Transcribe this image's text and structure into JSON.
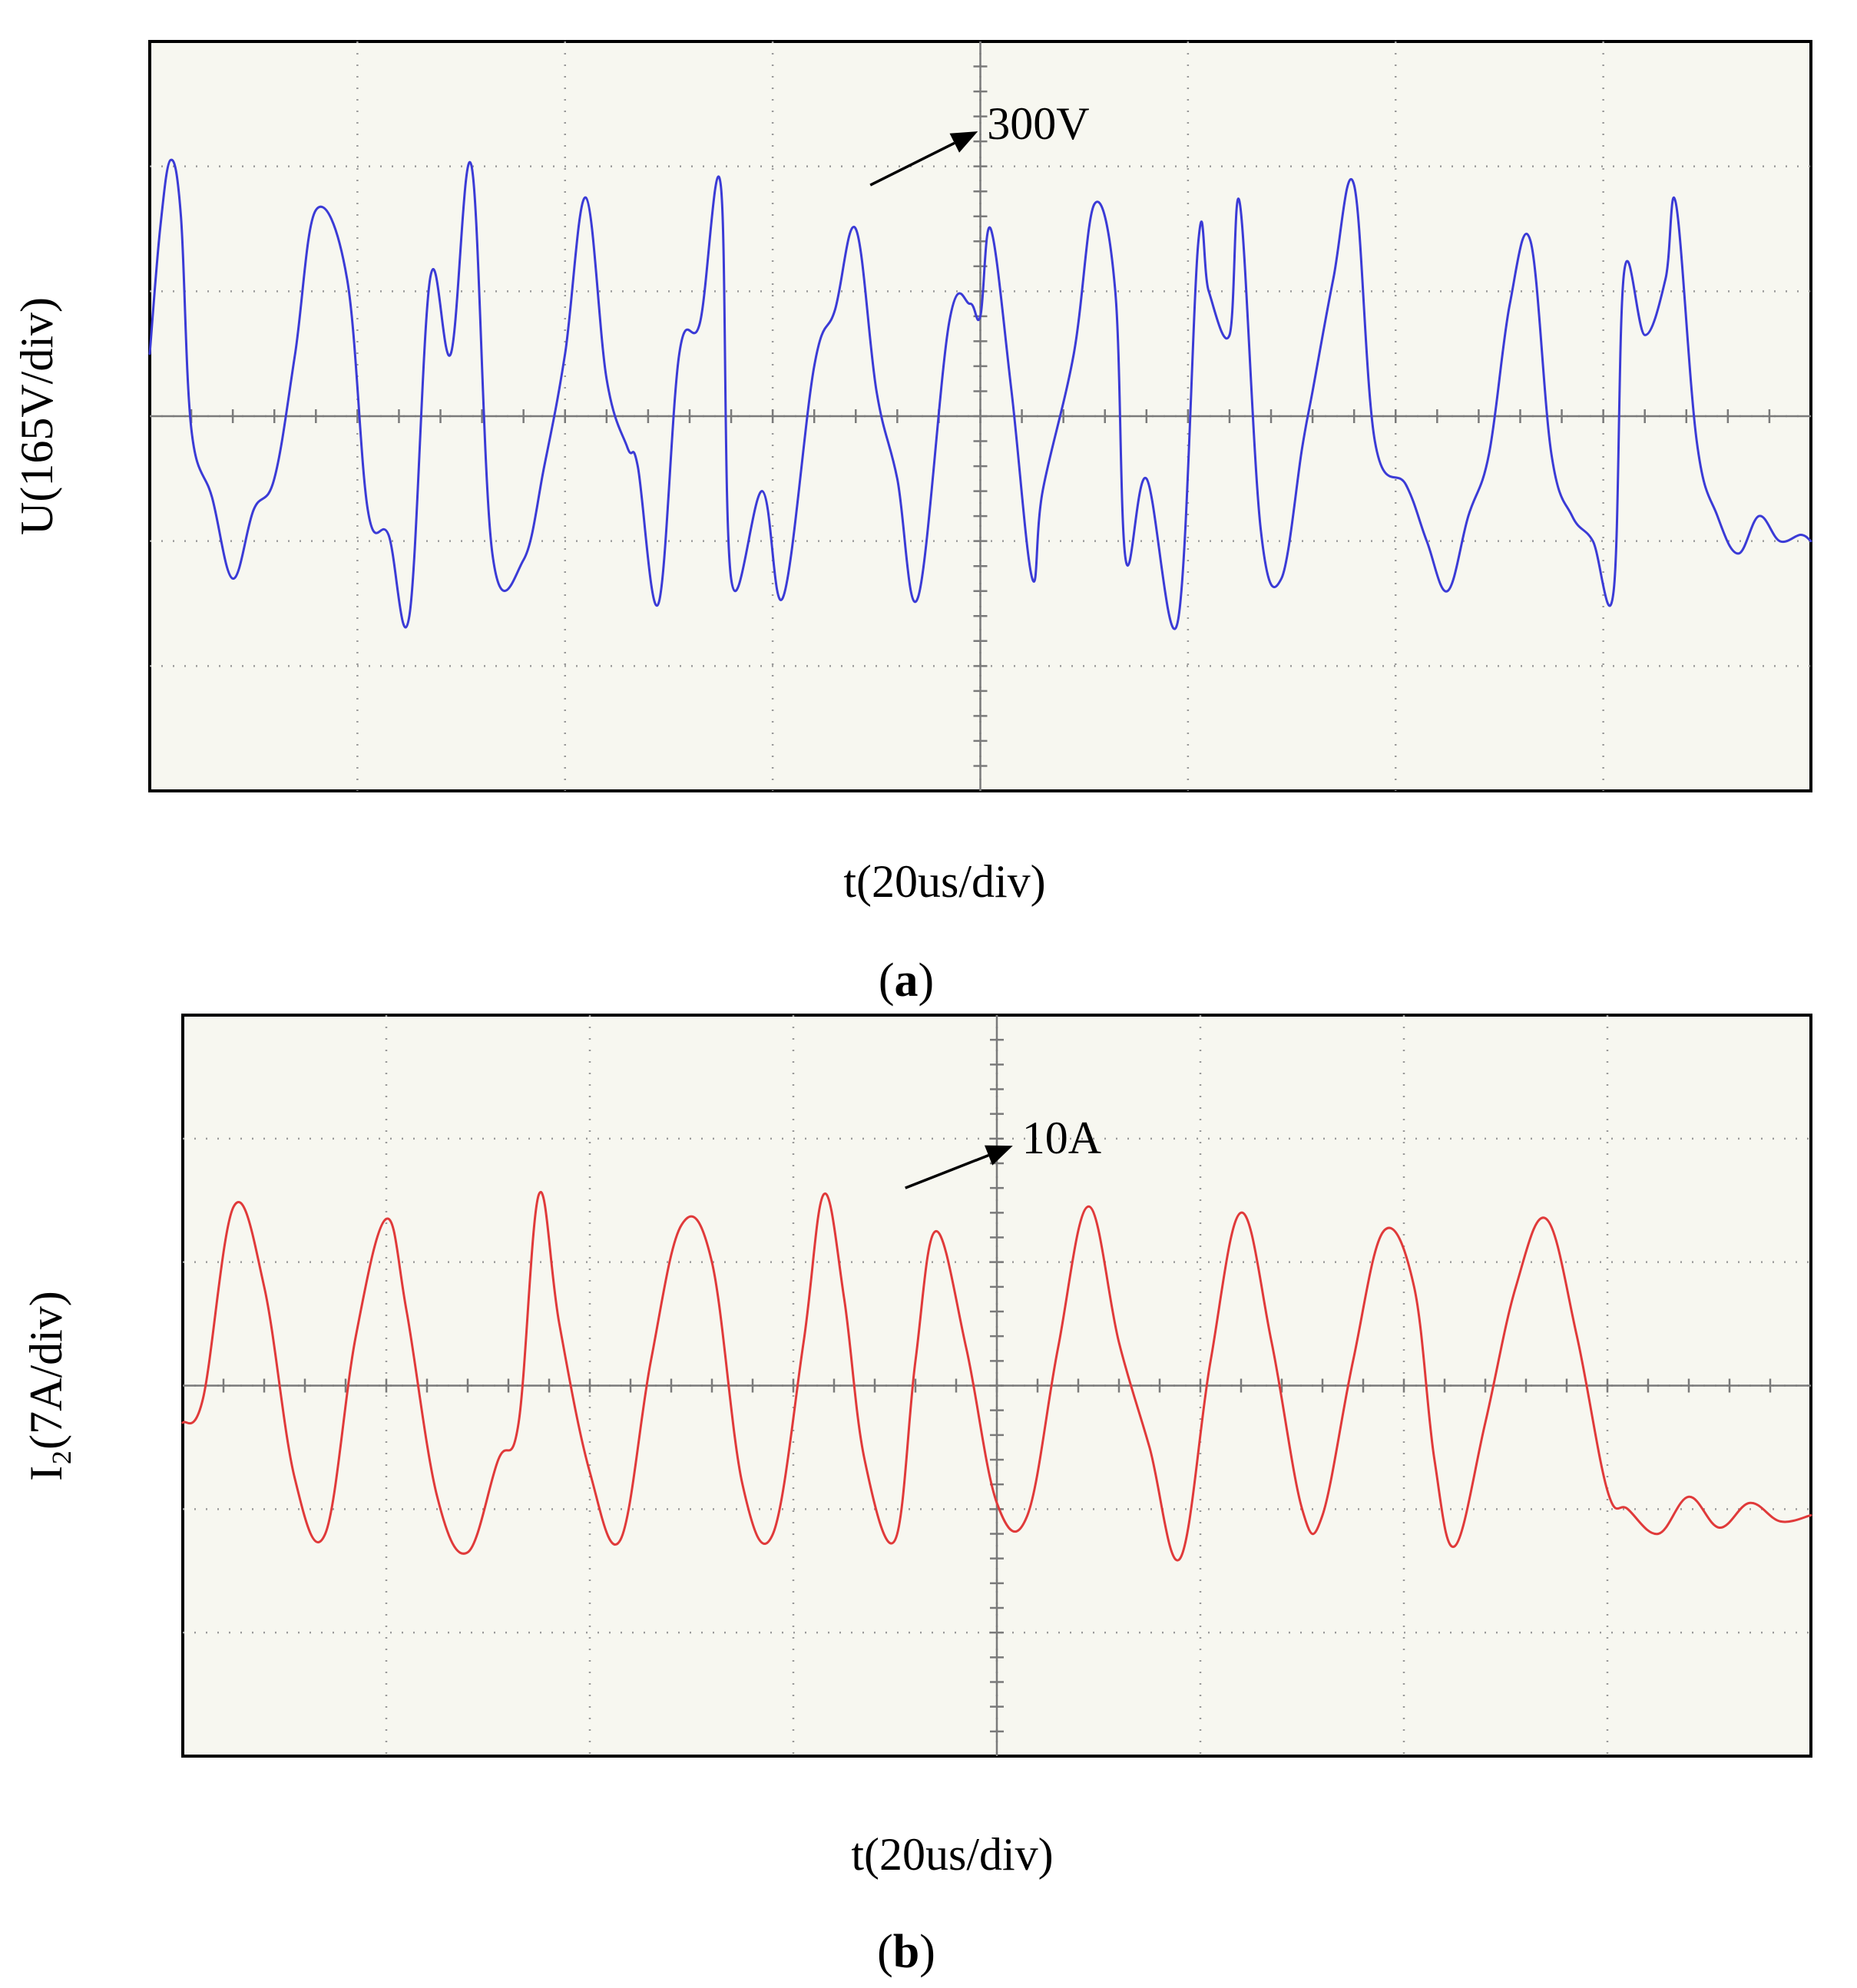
{
  "figure": {
    "panels": [
      "a",
      "b"
    ]
  },
  "chart_data": [
    {
      "type": "line",
      "panel_label": "a",
      "ylabel": "U(165V/div)",
      "xlabel": "t(20us/div)",
      "annotation": {
        "text": "300V",
        "x": 3.47,
        "y": 1.85
      },
      "divisions": {
        "x": 8,
        "y": 6
      },
      "xlim": [
        0,
        8
      ],
      "ylim": [
        -3,
        3
      ],
      "color": "#3b3bd6",
      "series": [
        {
          "x": [
            0.0,
            0.05,
            0.1,
            0.15,
            0.2,
            0.3,
            0.4,
            0.5,
            0.6,
            0.7,
            0.8,
            0.95,
            1.05,
            1.15,
            1.25,
            1.35,
            1.45,
            1.55,
            1.65,
            1.8,
            1.9,
            2.0,
            2.1,
            2.2,
            2.3,
            2.35,
            2.45,
            2.55,
            2.65,
            2.75,
            2.8,
            2.95,
            3.05,
            3.2,
            3.3,
            3.4,
            3.5,
            3.6,
            3.7,
            3.85,
            3.95,
            4.0,
            4.05,
            4.15,
            4.25,
            4.3,
            4.45,
            4.55,
            4.65,
            4.7,
            4.8,
            4.95,
            5.05,
            5.1,
            5.2,
            5.25,
            5.35,
            5.45,
            5.55,
            5.6,
            5.7,
            5.8,
            5.9,
            6.05,
            6.15,
            6.25,
            6.35,
            6.45,
            6.55,
            6.65,
            6.75,
            6.85,
            6.95,
            7.05,
            7.1,
            7.2,
            7.3,
            7.35,
            7.45,
            7.55,
            7.65,
            7.75,
            7.85,
            7.95,
            8.0
          ],
          "y": [
            0.5,
            1.5,
            2.05,
            1.6,
            -0.1,
            -0.65,
            -1.3,
            -0.75,
            -0.5,
            0.5,
            1.65,
            1.1,
            -0.75,
            -0.95,
            -1.6,
            1.1,
            0.5,
            2.0,
            -1.1,
            -1.15,
            -0.4,
            0.5,
            1.75,
            0.3,
            -0.25,
            -0.4,
            -1.5,
            0.5,
            0.75,
            1.85,
            -1.3,
            -0.6,
            -1.45,
            0.4,
            0.85,
            1.5,
            0.2,
            -0.5,
            -1.45,
            0.75,
            0.9,
            0.8,
            1.5,
            0.2,
            -1.3,
            -0.6,
            0.5,
            1.7,
            1.0,
            -1.15,
            -0.5,
            -1.65,
            1.4,
            1.0,
            0.65,
            1.7,
            -0.9,
            -1.3,
            -0.25,
            0.2,
            1.1,
            1.85,
            -0.2,
            -0.55,
            -1.0,
            -1.4,
            -0.8,
            -0.3,
            0.9,
            1.4,
            -0.3,
            -0.8,
            -1.0,
            -1.4,
            1.15,
            0.65,
            1.1,
            1.7,
            -0.2,
            -0.8,
            -1.1,
            -0.8,
            -1.0,
            -0.95,
            -1.0
          ]
        }
      ]
    },
    {
      "type": "line",
      "panel_label": "b",
      "ylabel": "I₂(7A/div)",
      "xlabel": "t(20us/div)",
      "annotation": {
        "text": "10A",
        "x": 3.55,
        "y": 1.6
      },
      "divisions": {
        "x": 8,
        "y": 6
      },
      "xlim": [
        0,
        8
      ],
      "ylim": [
        -3,
        3
      ],
      "color": "#e03a3a",
      "series": [
        {
          "x": [
            0.0,
            0.1,
            0.25,
            0.4,
            0.55,
            0.7,
            0.85,
            1.0,
            1.1,
            1.25,
            1.4,
            1.55,
            1.65,
            1.75,
            1.85,
            2.0,
            2.15,
            2.3,
            2.45,
            2.6,
            2.75,
            2.9,
            3.05,
            3.15,
            3.25,
            3.35,
            3.5,
            3.6,
            3.7,
            3.85,
            4.0,
            4.15,
            4.3,
            4.45,
            4.6,
            4.75,
            4.9,
            5.05,
            5.2,
            5.35,
            5.5,
            5.6,
            5.75,
            5.9,
            6.05,
            6.15,
            6.25,
            6.4,
            6.55,
            6.7,
            6.85,
            7.0,
            7.1,
            7.25,
            7.4,
            7.55,
            7.7,
            7.85,
            8.0
          ],
          "y": [
            -0.3,
            -0.1,
            1.45,
            0.8,
            -0.75,
            -1.2,
            0.4,
            1.35,
            0.6,
            -0.9,
            -1.35,
            -0.6,
            -0.3,
            1.55,
            0.5,
            -0.7,
            -1.25,
            0.2,
            1.3,
            1.0,
            -0.8,
            -1.2,
            0.35,
            1.55,
            0.7,
            -0.6,
            -1.25,
            0.2,
            1.25,
            0.3,
            -0.95,
            -1.05,
            0.3,
            1.45,
            0.35,
            -0.5,
            -1.4,
            0.2,
            1.4,
            0.35,
            -1.0,
            -1.05,
            0.2,
            1.25,
            0.8,
            -0.6,
            -1.3,
            -0.3,
            0.8,
            1.35,
            0.4,
            -0.85,
            -1.0,
            -1.2,
            -0.9,
            -1.15,
            -0.95,
            -1.1,
            -1.05
          ]
        }
      ]
    }
  ]
}
